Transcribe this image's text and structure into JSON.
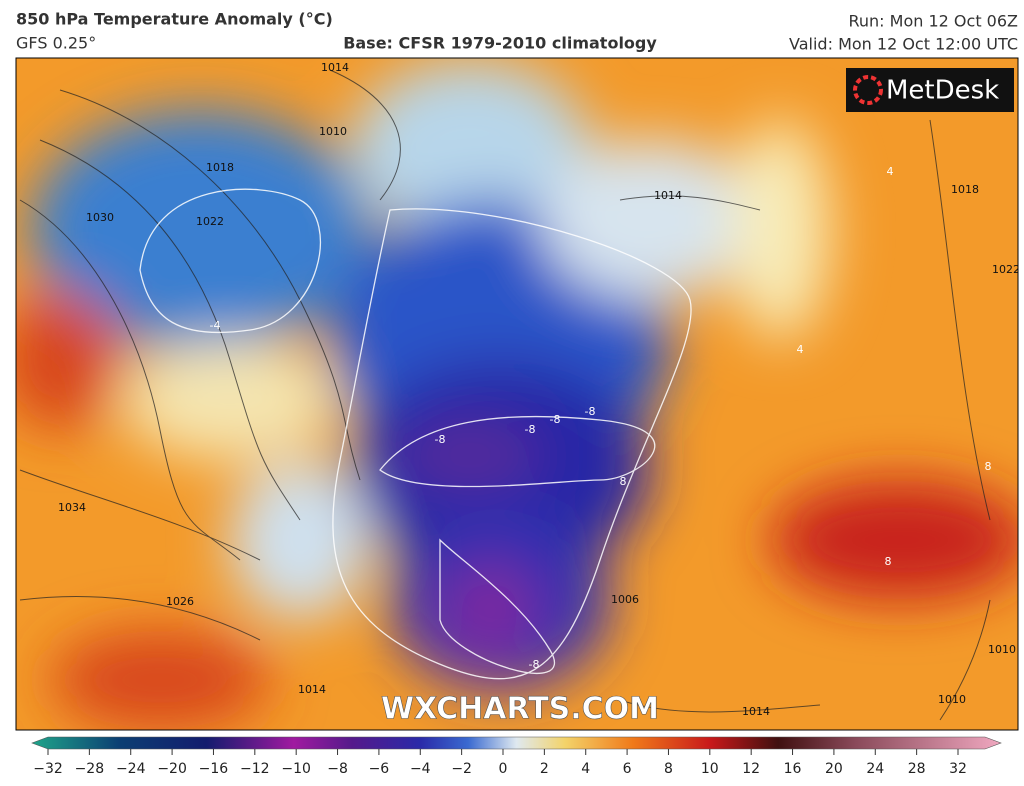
{
  "header": {
    "title": "850 hPa Temperature Anomaly (°C)",
    "model": "GFS 0.25°",
    "base": "Base: CFSR 1979-2010 climatology",
    "run": "Run: Mon 12 Oct 06Z",
    "valid": "Valid: Mon 12 Oct 12:00 UTC"
  },
  "map": {
    "logo": "MetDesk",
    "watermark": "WXCHARTS.COM",
    "isobar_labels": [
      "1014",
      "1010",
      "1018",
      "1030",
      "1022",
      "1034",
      "1026",
      "1014",
      "1014",
      "1006",
      "1014",
      "1018",
      "1022",
      "1010",
      "1010"
    ],
    "anomaly_labels": [
      "-4",
      "-8",
      "-8",
      "-8",
      "-8",
      "8",
      "-8",
      "8",
      "8",
      "4",
      "4"
    ]
  },
  "colorbar": {
    "ticks": [
      "−32",
      "−28",
      "−24",
      "−20",
      "−16",
      "−12",
      "−10",
      "−8",
      "−6",
      "−4",
      "−2",
      "0",
      "2",
      "4",
      "6",
      "8",
      "10",
      "12",
      "16",
      "20",
      "24",
      "28",
      "32"
    ]
  }
}
